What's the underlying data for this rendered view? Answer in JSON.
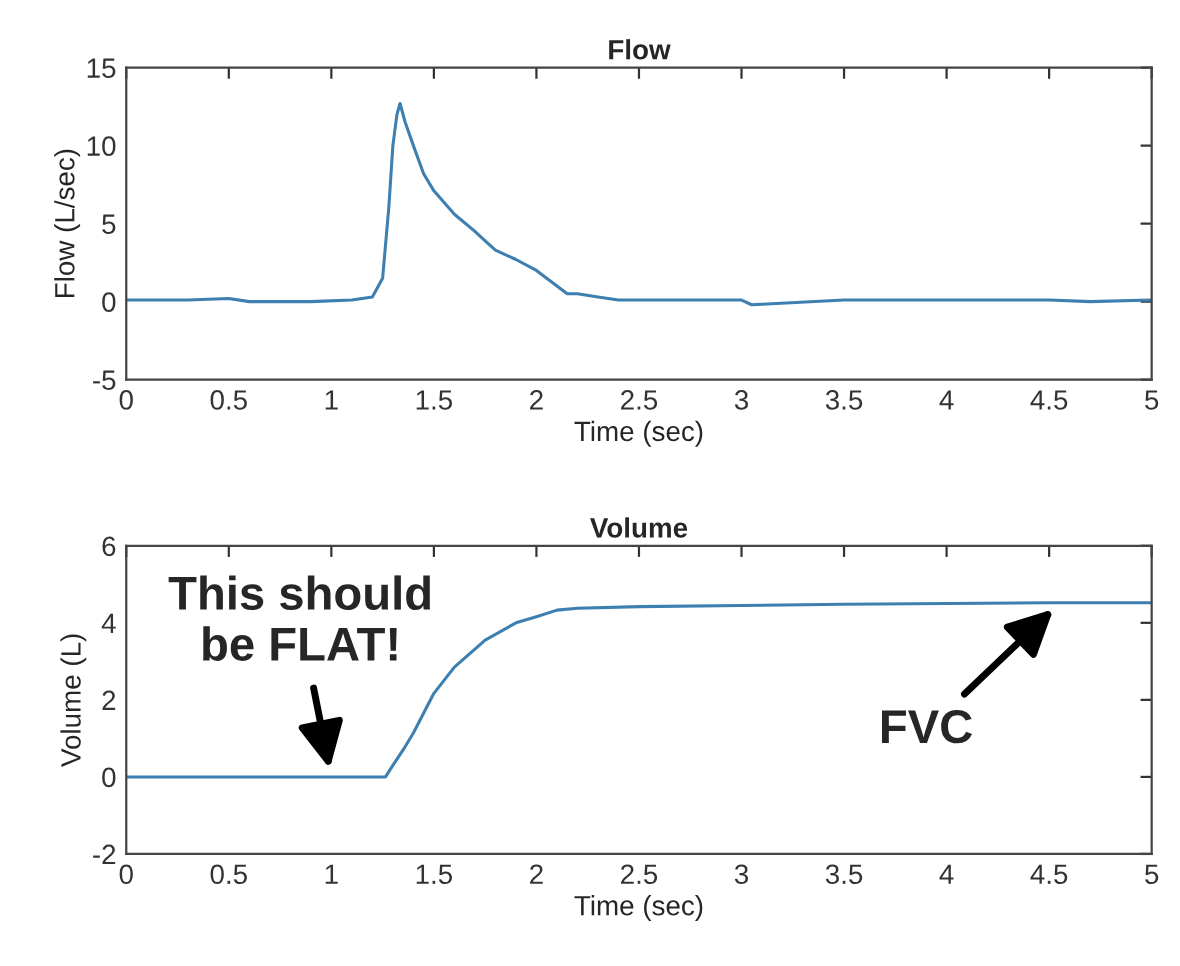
{
  "chart_data": [
    {
      "type": "line",
      "title": "Flow",
      "xlabel": "Time (sec)",
      "ylabel": "Flow (L/sec)",
      "xlim": [
        0,
        5
      ],
      "ylim": [
        -5,
        15
      ],
      "xticks": [
        0,
        0.5,
        1,
        1.5,
        2,
        2.5,
        3,
        3.5,
        4,
        4.5,
        5
      ],
      "yticks": [
        -5,
        0,
        5,
        10,
        15
      ],
      "grid": false,
      "series": [
        {
          "color": "#3d7fb0",
          "x": [
            0,
            0.3,
            0.5,
            0.6,
            0.9,
            1.1,
            1.2,
            1.25,
            1.28,
            1.3,
            1.32,
            1.335,
            1.36,
            1.4,
            1.45,
            1.5,
            1.6,
            1.7,
            1.75,
            1.8,
            1.9,
            2.0,
            2.05,
            2.1,
            2.15,
            2.2,
            2.3,
            2.4,
            2.5,
            3.0,
            3.05,
            3.5,
            4.0,
            4.5,
            4.7,
            5.0
          ],
          "values": [
            0.1,
            0.1,
            0.2,
            0,
            0,
            0.1,
            0.3,
            1.5,
            6,
            10,
            12,
            12.7,
            11.5,
            10,
            8.2,
            7.1,
            5.6,
            4.5,
            3.9,
            3.3,
            2.7,
            2.0,
            1.5,
            1.0,
            0.5,
            0.5,
            0.3,
            0.1,
            0.1,
            0.1,
            -0.2,
            0.1,
            0.1,
            0.1,
            0,
            0.1
          ]
        }
      ]
    },
    {
      "type": "line",
      "title": "Volume",
      "xlabel": "Time (sec)",
      "ylabel": "Volume (L)",
      "xlim": [
        0,
        5
      ],
      "ylim": [
        -2,
        6
      ],
      "xticks": [
        0,
        0.5,
        1,
        1.5,
        2,
        2.5,
        3,
        3.5,
        4,
        4.5,
        5
      ],
      "yticks": [
        -2,
        0,
        2,
        4,
        6
      ],
      "grid": false,
      "annotations": [
        {
          "text": "This should\nbe FLAT!",
          "x": 1.0,
          "y": 0
        },
        {
          "text": "FVC",
          "x": 4.55,
          "y": 4.5
        }
      ],
      "series": [
        {
          "color": "#3d7fb0",
          "x": [
            0,
            0.5,
            1.0,
            1.264,
            1.3,
            1.35,
            1.4,
            1.5,
            1.6,
            1.75,
            1.9,
            2.0,
            2.1,
            2.2,
            2.5,
            3.0,
            3.5,
            4.0,
            4.5,
            5.0
          ],
          "values": [
            0,
            0,
            0,
            0,
            0.3,
            0.7,
            1.14,
            2.17,
            2.85,
            3.55,
            4.0,
            4.16,
            4.33,
            4.38,
            4.42,
            4.45,
            4.48,
            4.5,
            4.52,
            4.52
          ]
        }
      ]
    }
  ]
}
